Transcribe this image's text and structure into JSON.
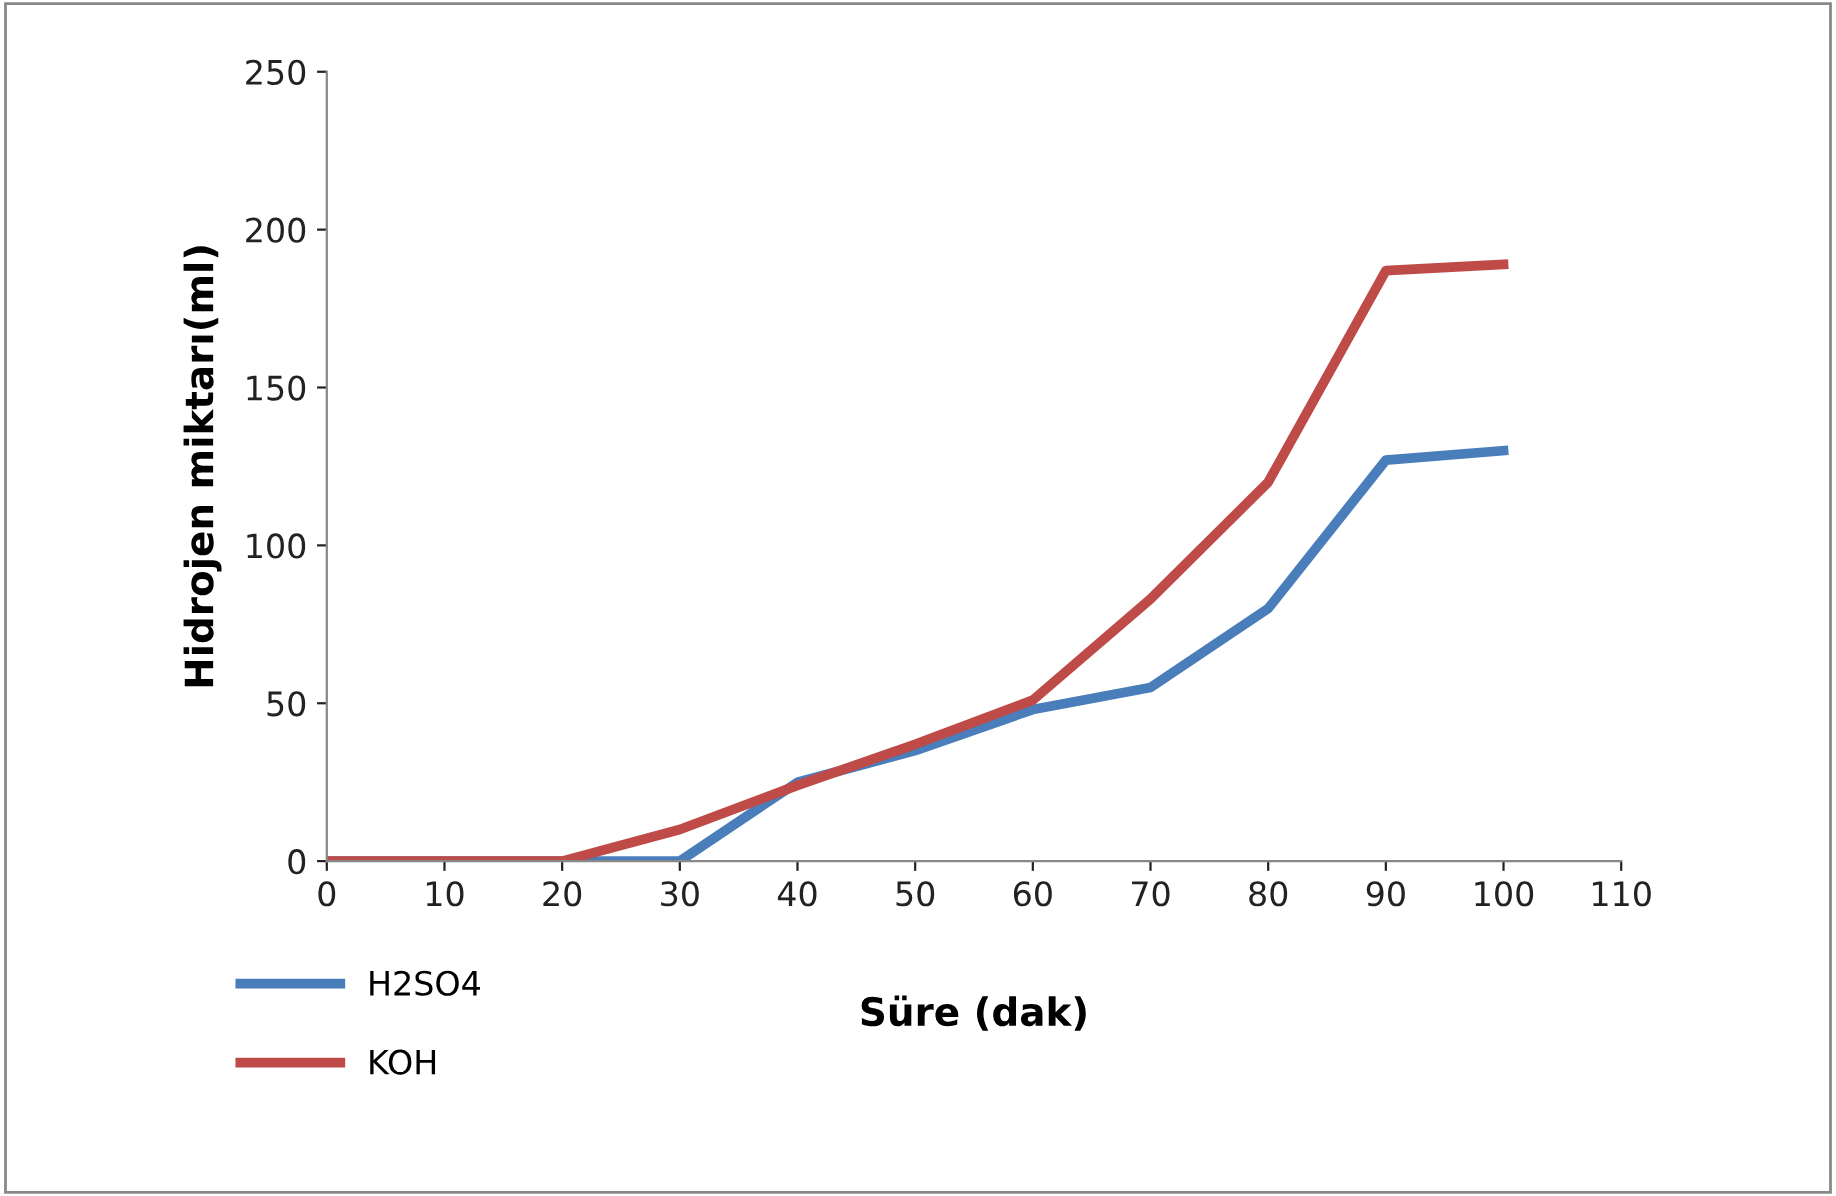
{
  "chart_data": {
    "type": "line",
    "xlabel": "Süre (dak)",
    "ylabel": "Hidrojen miktarı(ml)",
    "x": [
      0,
      10,
      20,
      30,
      40,
      50,
      60,
      70,
      80,
      90,
      100
    ],
    "series": [
      {
        "name": "H2SO4",
        "color": "#4a7ebb",
        "values": [
          0,
          0,
          0,
          0,
          25,
          35,
          48,
          55,
          80,
          127,
          130
        ]
      },
      {
        "name": "KOH",
        "color": "#be4b48",
        "values": [
          0,
          0,
          0,
          10,
          24,
          37,
          51,
          83,
          120,
          187,
          189
        ]
      }
    ],
    "xlim": [
      0,
      110
    ],
    "xticks": [
      0,
      10,
      20,
      30,
      40,
      50,
      60,
      70,
      80,
      90,
      100,
      110
    ],
    "ylim": [
      0,
      250
    ],
    "yticks": [
      0,
      50,
      100,
      150,
      200,
      250
    ],
    "grid": false,
    "legend": "bottom left",
    "marker": "none",
    "line_style": "solid"
  }
}
